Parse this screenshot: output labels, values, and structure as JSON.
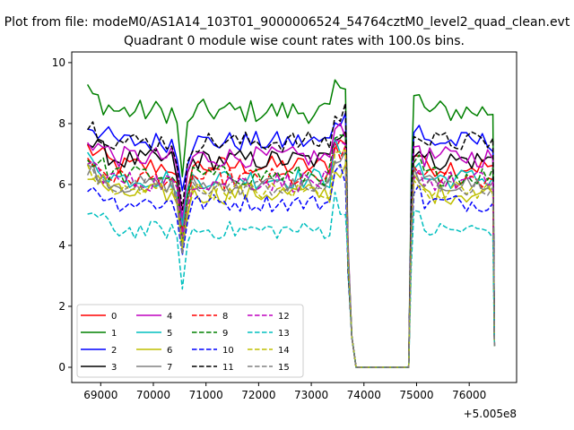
{
  "chart_data": {
    "type": "line",
    "suptitle": "Plot from file: modeM0/AS1A14_103T01_9000006524_54764cztM0_level2_quad_clean.evt",
    "title": "Quadrant 0 module wise count rates with 100.0s bins.",
    "xlabel": "",
    "ylabel": "",
    "x_offset_label": "+5.005e8",
    "xlim": [
      68450,
      76900
    ],
    "ylim": [
      -0.5,
      10.35
    ],
    "xticks": [
      69000,
      70000,
      71000,
      72000,
      73000,
      74000,
      75000,
      76000
    ],
    "xtick_labels": [
      "69000",
      "70000",
      "71000",
      "72000",
      "73000",
      "74000",
      "75000",
      "76000"
    ],
    "yticks": [
      0,
      2,
      4,
      6,
      8,
      10
    ],
    "ytick_labels": [
      "0",
      "2",
      "4",
      "6",
      "8",
      "10"
    ],
    "legend_position": "lower-left",
    "series": [
      {
        "name": "0",
        "color": "#ff0000",
        "dash": "solid",
        "level": 6.6,
        "noise": 0.35
      },
      {
        "name": "1",
        "color": "#008000",
        "dash": "solid",
        "level": 8.4,
        "noise": 0.4
      },
      {
        "name": "2",
        "color": "#0000ff",
        "dash": "solid",
        "level": 7.4,
        "noise": 0.35
      },
      {
        "name": "3",
        "color": "#000000",
        "dash": "solid",
        "level": 6.8,
        "noise": 0.35
      },
      {
        "name": "4",
        "color": "#bf00bf",
        "dash": "solid",
        "level": 6.9,
        "noise": 0.35
      },
      {
        "name": "5",
        "color": "#00bfbf",
        "dash": "solid",
        "level": 6.2,
        "noise": 0.35
      },
      {
        "name": "6",
        "color": "#bfbf00",
        "dash": "solid",
        "level": 5.7,
        "noise": 0.35
      },
      {
        "name": "7",
        "color": "#808080",
        "dash": "solid",
        "level": 6.0,
        "noise": 0.3
      },
      {
        "name": "8",
        "color": "#ff0000",
        "dash": "dashed",
        "level": 6.2,
        "noise": 0.35
      },
      {
        "name": "9",
        "color": "#008000",
        "dash": "dashed",
        "level": 6.3,
        "noise": 0.35
      },
      {
        "name": "10",
        "color": "#0000ff",
        "dash": "dashed",
        "level": 5.4,
        "noise": 0.3
      },
      {
        "name": "11",
        "color": "#000000",
        "dash": "dashed",
        "level": 7.4,
        "noise": 0.35
      },
      {
        "name": "12",
        "color": "#bf00bf",
        "dash": "dashed",
        "level": 6.1,
        "noise": 0.35
      },
      {
        "name": "13",
        "color": "#00bfbf",
        "dash": "dashed",
        "level": 4.5,
        "noise": 0.3
      },
      {
        "name": "14",
        "color": "#bfbf00",
        "dash": "dashed",
        "level": 5.8,
        "noise": 0.3
      },
      {
        "name": "15",
        "color": "#808080",
        "dash": "dashed",
        "level": 5.9,
        "noise": 0.3
      }
    ],
    "time_axis": {
      "start": 68750,
      "bin": 100,
      "segment1_end": 73650,
      "gap_start": 73850,
      "gap_end": 74850,
      "segment2_start": 74950,
      "segment2_end": 76450,
      "dip_at": 70550
    }
  }
}
